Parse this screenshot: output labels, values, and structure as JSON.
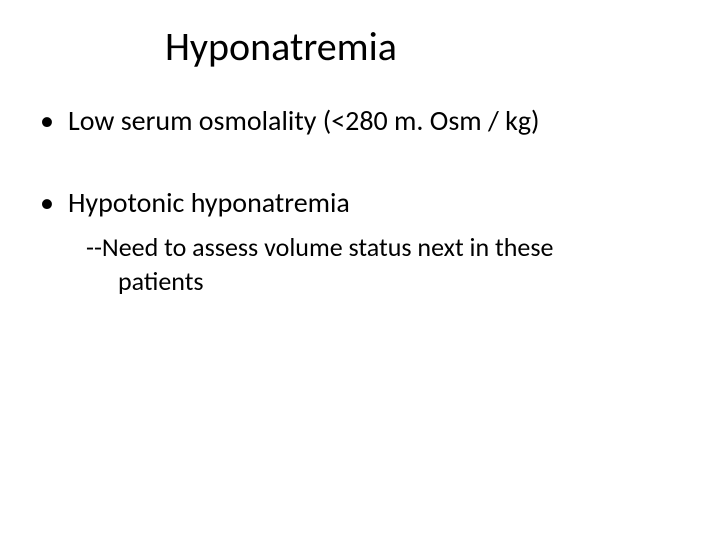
{
  "slide": {
    "title": "Hyponatremia",
    "bullets": [
      {
        "text": "Low serum osmolality (<280 m. Osm / kg)"
      },
      {
        "text": "Hypotonic hyponatremia"
      }
    ],
    "sub_line1": "--Need to assess volume status next in these",
    "sub_line2": "patients"
  },
  "style": {
    "background_color": "#ffffff",
    "text_color": "#000000",
    "title_fontsize": 40,
    "bullet_fontsize": 28,
    "sub_fontsize": 26,
    "font_family": "Calibri"
  }
}
